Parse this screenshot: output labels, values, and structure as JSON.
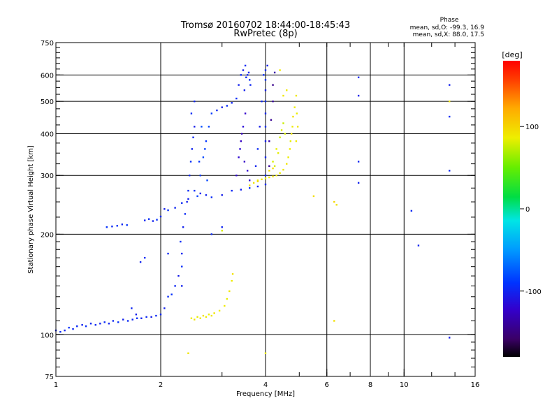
{
  "chart_data": {
    "type": "scatter",
    "title": "Tromsø 20160702 18:44:00-18:45:43",
    "subtitle": "RwPretec (8p)",
    "xlabel": "Frequency [MHz]",
    "ylabel": "Stationary phase Virtual Height [km]",
    "x_scale": "log",
    "y_scale": "log",
    "xlim": [
      1,
      16
    ],
    "ylim": [
      75,
      750
    ],
    "x_ticks": [
      1,
      2,
      4,
      6,
      8,
      10,
      16
    ],
    "y_ticks": [
      75,
      100,
      200,
      300,
      400,
      500,
      600,
      750
    ],
    "x_gridlines": [
      2,
      4,
      6,
      8,
      10
    ],
    "y_gridlines": [
      100,
      200,
      300,
      400,
      500,
      600
    ],
    "grid": true,
    "colorbar": {
      "label": "[deg]",
      "ticks": [
        100,
        0,
        -100
      ],
      "range": [
        -180,
        180
      ],
      "colormap": "rainbow"
    },
    "stats": {
      "heading": "Phase",
      "line_o": "mean, sd,O: -99.3, 16.9",
      "line_x": "mean, sd,X:  88.0, 17.5"
    },
    "series": [
      {
        "mode": "O",
        "points": [
          [
            1.0,
            103,
            -98
          ],
          [
            1.03,
            102,
            -95
          ],
          [
            1.06,
            103,
            -100
          ],
          [
            1.09,
            105,
            -92
          ],
          [
            1.12,
            104,
            -98
          ],
          [
            1.15,
            106,
            -96
          ],
          [
            1.19,
            107,
            -101
          ],
          [
            1.22,
            106,
            -94
          ],
          [
            1.26,
            108,
            -99
          ],
          [
            1.3,
            107,
            -97
          ],
          [
            1.34,
            108,
            -102
          ],
          [
            1.38,
            109,
            -95
          ],
          [
            1.42,
            108,
            -100
          ],
          [
            1.46,
            110,
            -98
          ],
          [
            1.51,
            109,
            -93
          ],
          [
            1.56,
            111,
            -101
          ],
          [
            1.61,
            110,
            -96
          ],
          [
            1.66,
            111,
            -99
          ],
          [
            1.71,
            112,
            -94
          ],
          [
            1.76,
            112,
            -100
          ],
          [
            1.82,
            113,
            -97
          ],
          [
            1.88,
            113,
            -103
          ],
          [
            1.94,
            114,
            -96
          ],
          [
            2.0,
            115,
            -98
          ],
          [
            2.05,
            120,
            -102
          ],
          [
            2.1,
            130,
            -95
          ],
          [
            1.4,
            210,
            -92
          ],
          [
            1.45,
            211,
            -96
          ],
          [
            1.5,
            212,
            -94
          ],
          [
            1.55,
            214,
            -99
          ],
          [
            1.6,
            213,
            -92
          ],
          [
            1.8,
            220,
            -98
          ],
          [
            1.85,
            222,
            -95
          ],
          [
            1.9,
            219,
            -101
          ],
          [
            1.95,
            221,
            -93
          ],
          [
            2.0,
            226,
            -97
          ],
          [
            2.05,
            238,
            -102
          ],
          [
            2.1,
            236,
            -94
          ],
          [
            2.2,
            240,
            -99
          ],
          [
            2.3,
            248,
            -96
          ],
          [
            2.4,
            255,
            -101
          ],
          [
            2.5,
            270,
            -93
          ],
          [
            2.6,
            265,
            -98
          ],
          [
            2.7,
            262,
            -100
          ],
          [
            2.8,
            258,
            -95
          ],
          [
            3.0,
            262,
            -103
          ],
          [
            3.2,
            270,
            -97
          ],
          [
            3.4,
            272,
            -101
          ],
          [
            3.6,
            275,
            -94
          ],
          [
            3.8,
            278,
            -99
          ],
          [
            4.0,
            282,
            -96
          ],
          [
            2.15,
            132,
            -92
          ],
          [
            2.2,
            140,
            -98
          ],
          [
            2.25,
            150,
            -104
          ],
          [
            2.3,
            160,
            -93
          ],
          [
            2.3,
            175,
            -99
          ],
          [
            2.28,
            190,
            -94
          ],
          [
            2.32,
            210,
            -101
          ],
          [
            2.35,
            230,
            -96
          ],
          [
            2.38,
            250,
            -102
          ],
          [
            2.4,
            270,
            -95
          ],
          [
            2.42,
            300,
            -98
          ],
          [
            2.44,
            330,
            -93
          ],
          [
            2.46,
            360,
            -100
          ],
          [
            2.48,
            390,
            -97
          ],
          [
            2.5,
            420,
            -104
          ],
          [
            2.45,
            460,
            -95
          ],
          [
            2.5,
            500,
            -99
          ],
          [
            2.55,
            260,
            -85
          ],
          [
            2.6,
            300,
            -88
          ],
          [
            2.65,
            340,
            -82
          ],
          [
            2.7,
            380,
            -90
          ],
          [
            2.75,
            420,
            -84
          ],
          [
            2.8,
            460,
            -87
          ],
          [
            2.62,
            420,
            -80
          ],
          [
            2.68,
            360,
            -86
          ],
          [
            2.58,
            330,
            -91
          ],
          [
            2.72,
            290,
            -83
          ],
          [
            2.9,
            470,
            -98
          ],
          [
            3.0,
            480,
            -102
          ],
          [
            3.1,
            485,
            -95
          ],
          [
            3.2,
            495,
            -99
          ],
          [
            3.3,
            510,
            -94
          ],
          [
            3.35,
            560,
            -101
          ],
          [
            3.4,
            600,
            -97
          ],
          [
            3.45,
            620,
            -104
          ],
          [
            3.5,
            640,
            -96
          ],
          [
            3.55,
            600,
            -100
          ],
          [
            3.6,
            580,
            -93
          ],
          [
            3.62,
            560,
            -98
          ],
          [
            3.48,
            540,
            -102
          ],
          [
            3.52,
            590,
            -95
          ],
          [
            3.58,
            610,
            -99
          ],
          [
            3.3,
            300,
            -120
          ],
          [
            3.35,
            340,
            -118
          ],
          [
            3.4,
            380,
            -125
          ],
          [
            3.45,
            420,
            -115
          ],
          [
            3.5,
            460,
            -122
          ],
          [
            3.42,
            400,
            -128
          ],
          [
            3.38,
            360,
            -117
          ],
          [
            3.48,
            330,
            -124
          ],
          [
            3.55,
            310,
            -119
          ],
          [
            3.6,
            290,
            -121
          ],
          [
            4.0,
            300,
            -96
          ],
          [
            4.0,
            340,
            -99
          ],
          [
            4.0,
            380,
            -102
          ],
          [
            4.0,
            420,
            -95
          ],
          [
            4.0,
            460,
            -100
          ],
          [
            4.0,
            500,
            -97
          ],
          [
            4.0,
            540,
            -103
          ],
          [
            4.0,
            580,
            -94
          ],
          [
            4.0,
            620,
            -98
          ],
          [
            4.05,
            640,
            -101
          ],
          [
            3.95,
            600,
            -95
          ],
          [
            3.9,
            500,
            -99
          ],
          [
            3.85,
            420,
            -104
          ],
          [
            3.8,
            360,
            -96
          ],
          [
            3.75,
            320,
            -100
          ],
          [
            4.1,
            320,
            -140
          ],
          [
            4.1,
            380,
            -135
          ],
          [
            4.15,
            440,
            -142
          ],
          [
            4.2,
            500,
            -138
          ],
          [
            4.2,
            560,
            -145
          ],
          [
            4.25,
            610,
            -136
          ],
          [
            1.75,
            165,
            -100
          ],
          [
            1.8,
            170,
            -95
          ],
          [
            1.65,
            120,
            -98
          ],
          [
            1.7,
            115,
            -103
          ],
          [
            2.1,
            175,
            -97
          ],
          [
            2.3,
            140,
            -101
          ],
          [
            2.8,
            200,
            -96
          ],
          [
            3.0,
            210,
            -99
          ],
          [
            7.4,
            520,
            -102
          ],
          [
            7.4,
            590,
            -94
          ],
          [
            7.4,
            330,
            -98
          ],
          [
            7.4,
            285,
            -100
          ],
          [
            10.5,
            235,
            -97
          ],
          [
            11.0,
            185,
            -99
          ],
          [
            13.5,
            560,
            -101
          ],
          [
            13.5,
            450,
            -95
          ],
          [
            13.5,
            310,
            -98
          ],
          [
            13.5,
            98,
            -103
          ]
        ]
      },
      {
        "mode": "X",
        "points": [
          [
            2.45,
            112,
            86
          ],
          [
            2.5,
            111,
            90
          ],
          [
            2.55,
            113,
            84
          ],
          [
            2.6,
            112,
            88
          ],
          [
            2.65,
            114,
            92
          ],
          [
            2.7,
            113,
            87
          ],
          [
            2.75,
            115,
            85
          ],
          [
            2.8,
            114,
            89
          ],
          [
            2.85,
            116,
            91
          ],
          [
            2.95,
            118,
            86
          ],
          [
            3.05,
            122,
            88
          ],
          [
            3.1,
            128,
            84
          ],
          [
            3.15,
            135,
            90
          ],
          [
            3.2,
            145,
            87
          ],
          [
            3.22,
            152,
            93
          ],
          [
            3.8,
            290,
            86
          ],
          [
            3.9,
            292,
            90
          ],
          [
            4.0,
            294,
            84
          ],
          [
            4.1,
            296,
            88
          ],
          [
            4.2,
            298,
            92
          ],
          [
            4.3,
            300,
            87
          ],
          [
            4.4,
            305,
            85
          ],
          [
            4.5,
            312,
            89
          ],
          [
            4.6,
            325,
            91
          ],
          [
            4.65,
            340,
            86
          ],
          [
            4.7,
            360,
            88
          ],
          [
            4.72,
            380,
            84
          ],
          [
            4.75,
            400,
            90
          ],
          [
            4.78,
            420,
            87
          ],
          [
            4.8,
            450,
            93
          ],
          [
            4.85,
            480,
            86
          ],
          [
            4.9,
            520,
            89
          ],
          [
            4.92,
            460,
            85
          ],
          [
            4.95,
            420,
            91
          ],
          [
            4.9,
            380,
            88
          ],
          [
            4.2,
            330,
            80
          ],
          [
            4.3,
            360,
            84
          ],
          [
            4.4,
            390,
            78
          ],
          [
            4.45,
            410,
            82
          ],
          [
            4.5,
            430,
            76
          ],
          [
            4.55,
            400,
            80
          ],
          [
            4.35,
            350,
            83
          ],
          [
            4.25,
            320,
            79
          ],
          [
            3.6,
            280,
            95
          ],
          [
            3.7,
            285,
            92
          ],
          [
            3.8,
            288,
            97
          ],
          [
            4.1,
            310,
            94
          ],
          [
            4.2,
            315,
            96
          ],
          [
            4.5,
            520,
            90
          ],
          [
            4.6,
            540,
            88
          ],
          [
            2.4,
            88,
            90
          ],
          [
            4.0,
            88,
            86
          ],
          [
            5.5,
            260,
            95
          ],
          [
            6.3,
            250,
            98
          ],
          [
            6.4,
            245,
            92
          ],
          [
            6.3,
            110,
            94
          ],
          [
            13.5,
            500,
            90
          ],
          [
            4.4,
            620,
            88
          ],
          [
            3.0,
            205,
            80
          ]
        ]
      }
    ]
  }
}
